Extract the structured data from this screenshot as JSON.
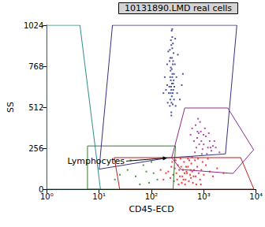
{
  "chart_data": {
    "type": "scatter",
    "title": "10131890.LMD real cells",
    "xlabel": "CD45-ECD",
    "ylabel": "SS",
    "log": "x",
    "grid": false,
    "xlim": [
      1,
      10000
    ],
    "xticks": [
      {
        "value": 1,
        "label": "10⁰"
      },
      {
        "value": 10,
        "label": "10¹"
      },
      {
        "value": 100,
        "label": "10²"
      },
      {
        "value": 1000,
        "label": "10³"
      },
      {
        "value": 10000,
        "label": "10⁴"
      }
    ],
    "ylim": [
      0,
      1024
    ],
    "yticks": [
      0,
      256,
      512,
      768,
      1024
    ],
    "annotations": [
      {
        "text": "Lymphocytes",
        "x": 200,
        "y": 195
      }
    ],
    "series": [
      {
        "type": "polygon",
        "color": "#2e8b8b",
        "values": [
          [
            1,
            1024
          ],
          [
            4.3,
            1024
          ],
          [
            10.6,
            0
          ],
          [
            1,
            0
          ]
        ]
      },
      {
        "type": "polygon",
        "color": "#2d7d2d",
        "values": [
          [
            6,
            270
          ],
          [
            288,
            270
          ],
          [
            260,
            0
          ],
          [
            6,
            0
          ]
        ]
      },
      {
        "type": "polygon",
        "color": "#3b2f7f",
        "values": [
          [
            18,
            1024
          ],
          [
            4300,
            1024
          ],
          [
            2600,
            220
          ],
          [
            200,
            195
          ],
          [
            10,
            125
          ]
        ]
      },
      {
        "type": "polygon",
        "color": "#8b2c8b",
        "values": [
          [
            434,
            507
          ],
          [
            2880,
            507
          ],
          [
            9000,
            246
          ],
          [
            3630,
            98
          ],
          [
            365,
            123
          ],
          [
            245,
            197
          ]
        ]
      },
      {
        "type": "polygon",
        "color": "#c02020",
        "values": [
          [
            19.5,
            197
          ],
          [
            5100,
            197
          ],
          [
            9100,
            0
          ],
          [
            24.7,
            0
          ]
        ]
      },
      {
        "type": "scatter",
        "color": "#1f7a1f",
        "values": [
          [
            20,
            60
          ],
          [
            35,
            120
          ],
          [
            50,
            80
          ],
          [
            70,
            150
          ],
          [
            90,
            40
          ],
          [
            110,
            100
          ],
          [
            60,
            30
          ],
          [
            40,
            180
          ],
          [
            130,
            60
          ],
          [
            80,
            110
          ],
          [
            25,
            90
          ],
          [
            100,
            170
          ]
        ]
      },
      {
        "type": "scatter",
        "color": "#1c2a8a",
        "values": [
          [
            240,
            620
          ],
          [
            250,
            700
          ],
          [
            230,
            560
          ],
          [
            260,
            800
          ],
          [
            245,
            750
          ],
          [
            235,
            680
          ],
          [
            255,
            600
          ],
          [
            225,
            520
          ],
          [
            265,
            850
          ],
          [
            240,
            900
          ],
          [
            250,
            950
          ],
          [
            230,
            820
          ],
          [
            270,
            720
          ],
          [
            220,
            640
          ],
          [
            245,
            580
          ],
          [
            260,
            660
          ],
          [
            235,
            760
          ],
          [
            250,
            880
          ],
          [
            240,
            480
          ],
          [
            255,
            530
          ],
          [
            228,
            700
          ],
          [
            262,
            620
          ],
          [
            248,
            820
          ],
          [
            236,
            930
          ],
          [
            244,
            990
          ],
          [
            270,
            560
          ],
          [
            215,
            600
          ],
          [
            280,
            780
          ],
          [
            225,
            870
          ],
          [
            252,
            720
          ],
          [
            238,
            640
          ],
          [
            258,
            910
          ],
          [
            232,
            740
          ],
          [
            266,
            680
          ],
          [
            242,
            540
          ],
          [
            246,
            660
          ],
          [
            234,
            600
          ],
          [
            256,
            780
          ],
          [
            222,
            800
          ],
          [
            274,
            640
          ],
          [
            240,
            460
          ],
          [
            250,
            1000
          ],
          [
            300,
            700
          ],
          [
            200,
            650
          ],
          [
            290,
            520
          ],
          [
            180,
            700
          ],
          [
            190,
            620
          ],
          [
            200,
            780
          ],
          [
            380,
            650
          ],
          [
            350,
            560
          ],
          [
            320,
            840
          ],
          [
            170,
            600
          ],
          [
            400,
            720
          ],
          [
            210,
            860
          ],
          [
            310,
            600
          ],
          [
            285,
            940
          ],
          [
            205,
            540
          ]
        ]
      },
      {
        "type": "scatter",
        "color": "#9b1f9b",
        "values": [
          [
            700,
            400
          ],
          [
            800,
            350
          ],
          [
            900,
            300
          ],
          [
            1000,
            280
          ],
          [
            1200,
            260
          ],
          [
            600,
            380
          ],
          [
            750,
            320
          ],
          [
            850,
            420
          ],
          [
            950,
            250
          ],
          [
            1100,
            330
          ],
          [
            1300,
            300
          ],
          [
            1500,
            270
          ],
          [
            650,
            300
          ],
          [
            720,
            260
          ],
          [
            880,
            360
          ],
          [
            1050,
            380
          ],
          [
            1400,
            240
          ],
          [
            1700,
            260
          ],
          [
            2000,
            230
          ],
          [
            560,
            340
          ],
          [
            780,
            440
          ],
          [
            920,
            220
          ],
          [
            1150,
            220
          ],
          [
            1250,
            350
          ],
          [
            680,
            230
          ],
          [
            820,
            280
          ],
          [
            1600,
            300
          ],
          [
            990,
            340
          ],
          [
            760,
            360
          ],
          [
            1350,
            260
          ]
        ]
      },
      {
        "type": "scatter",
        "color": "#ff0000",
        "values": [
          [
            300,
            100
          ],
          [
            350,
            80
          ],
          [
            400,
            120
          ],
          [
            450,
            60
          ],
          [
            500,
            140
          ],
          [
            550,
            90
          ],
          [
            600,
            110
          ],
          [
            320,
            150
          ],
          [
            380,
            40
          ],
          [
            420,
            170
          ],
          [
            480,
            100
          ],
          [
            520,
            50
          ],
          [
            580,
            160
          ],
          [
            650,
            120
          ],
          [
            700,
            80
          ],
          [
            750,
            140
          ],
          [
            800,
            100
          ],
          [
            260,
            90
          ],
          [
            280,
            130
          ],
          [
            230,
            70
          ],
          [
            210,
            110
          ],
          [
            250,
            170
          ],
          [
            900,
            120
          ],
          [
            1000,
            90
          ],
          [
            1100,
            150
          ],
          [
            1300,
            110
          ],
          [
            1500,
            80
          ],
          [
            360,
            190
          ],
          [
            440,
            30
          ],
          [
            620,
            40
          ],
          [
            680,
            180
          ],
          [
            340,
            120
          ],
          [
            460,
            140
          ],
          [
            530,
            180
          ],
          [
            570,
            70
          ],
          [
            390,
            80
          ],
          [
            410,
            60
          ],
          [
            470,
            110
          ],
          [
            310,
            60
          ],
          [
            290,
            180
          ],
          [
            240,
            140
          ],
          [
            190,
            100
          ],
          [
            170,
            60
          ],
          [
            150,
            120
          ],
          [
            850,
            60
          ],
          [
            950,
            170
          ],
          [
            1200,
            190
          ],
          [
            1800,
            130
          ],
          [
            2400,
            100
          ],
          [
            720,
            30
          ],
          [
            640,
            80
          ],
          [
            560,
            120
          ],
          [
            500,
            190
          ],
          [
            430,
            100
          ],
          [
            370,
            140
          ],
          [
            330,
            30
          ],
          [
            270,
            50
          ],
          [
            600,
            200
          ],
          [
            780,
            190
          ],
          [
            880,
            30
          ]
        ]
      }
    ]
  }
}
